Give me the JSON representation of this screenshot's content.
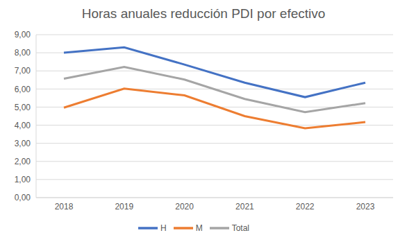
{
  "chart_data": {
    "type": "line",
    "title": "Horas anuales reducción PDI por efectivo",
    "categories": [
      "2018",
      "2019",
      "2020",
      "2021",
      "2022",
      "2023"
    ],
    "series": [
      {
        "name": "H",
        "color": "#4472c4",
        "values": [
          8.0,
          8.3,
          7.35,
          6.35,
          5.55,
          6.35
        ]
      },
      {
        "name": "M",
        "color": "#ed7d31",
        "values": [
          4.97,
          6.02,
          5.65,
          4.5,
          3.83,
          4.17
        ]
      },
      {
        "name": "Total",
        "color": "#a5a5a5",
        "values": [
          6.57,
          7.22,
          6.52,
          5.45,
          4.72,
          5.22
        ]
      }
    ],
    "ylim": [
      0,
      9
    ],
    "yticks": [
      {
        "value": 0,
        "label": "0,00"
      },
      {
        "value": 1,
        "label": "1,00"
      },
      {
        "value": 2,
        "label": "2,00"
      },
      {
        "value": 3,
        "label": "3,00"
      },
      {
        "value": 4,
        "label": "4,00"
      },
      {
        "value": 5,
        "label": "5,00"
      },
      {
        "value": 6,
        "label": "6,00"
      },
      {
        "value": 7,
        "label": "7,00"
      },
      {
        "value": 8,
        "label": "8,00"
      },
      {
        "value": 9,
        "label": "9,00"
      }
    ],
    "grid": true,
    "legend": "bottom"
  }
}
